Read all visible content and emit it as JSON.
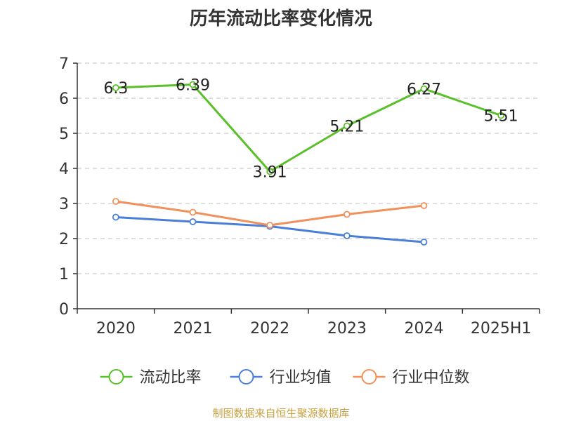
{
  "chart_data": {
    "type": "line",
    "title": "历年流动比率变化情况",
    "categories": [
      "2020",
      "2021",
      "2022",
      "2023",
      "2024",
      "2025H1"
    ],
    "ylim": [
      0,
      7
    ],
    "yticks": [
      "0",
      "1",
      "2",
      "3",
      "4",
      "5",
      "6",
      "7"
    ],
    "grid": true,
    "legend_position": "bottom",
    "series": [
      {
        "name": "流动比率",
        "color": "#5ac02a",
        "values": [
          6.3,
          6.39,
          3.91,
          5.21,
          6.27,
          5.51
        ],
        "labels": [
          "6.3",
          "6.39",
          "3.91",
          "5.21",
          "6.27",
          "5.51"
        ]
      },
      {
        "name": "行业均值",
        "color": "#4a7fd8",
        "values": [
          2.61,
          2.48,
          2.35,
          2.08,
          1.9,
          null
        ]
      },
      {
        "name": "行业中位数",
        "color": "#f0905a",
        "values": [
          3.06,
          2.75,
          2.38,
          2.69,
          2.94,
          null
        ]
      }
    ]
  },
  "source": "制图数据来自恒生聚源数据库"
}
